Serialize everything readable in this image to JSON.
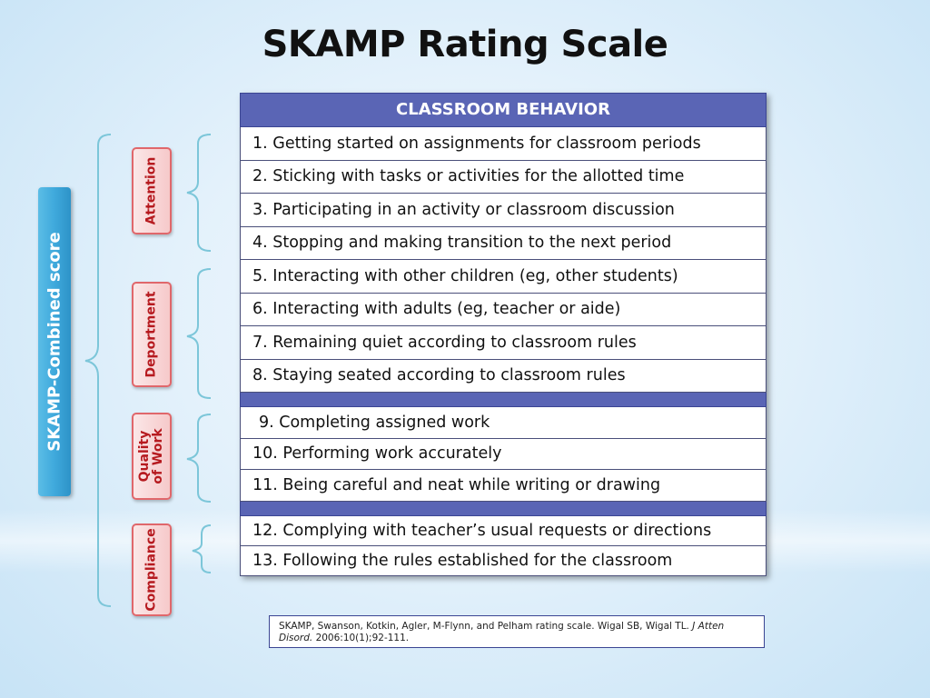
{
  "title": "SKAMP Rating Scale",
  "table": {
    "header": "CLASSROOM BEHAVIOR",
    "items": [
      "1. Getting started on assignments for classroom periods",
      "2. Sticking with tasks or activities for the allotted time",
      "3. Participating in an activity or classroom discussion",
      "4. Stopping and making transition to the next period",
      "5. Interacting with other children (eg, other students)",
      "6. Interacting with adults (eg, teacher or aide)",
      "7. Remaining quiet according to classroom rules",
      "8. Staying seated according to classroom rules",
      "9. Completing assigned work",
      "10. Performing work accurately",
      "11. Being careful and neat while writing or drawing",
      "12. Complying with teacher’s usual requests or directions",
      "13. Following the rules established for the classroom"
    ]
  },
  "combined_label": "SKAMP-Combined score",
  "categories": {
    "attention": "Attention",
    "deportment": "Deportment",
    "quality_line1": "Quality",
    "quality_line2": "of Work",
    "compliance": "Compliance"
  },
  "reference": {
    "text_plain": "SKAMP, Swanson, Kotkin, Agler, M-Flynn, and Pelham rating scale. Wigal SB, Wigal TL.",
    "journal": "J Atten Disord.",
    "citation": "2006:10(1);92-111."
  },
  "colors": {
    "table_header": "#5a65b5",
    "combined_box": "#3fa9dc",
    "category_border": "#e0676b",
    "category_text": "#b61a1f",
    "brace": "#7cc6d9"
  }
}
